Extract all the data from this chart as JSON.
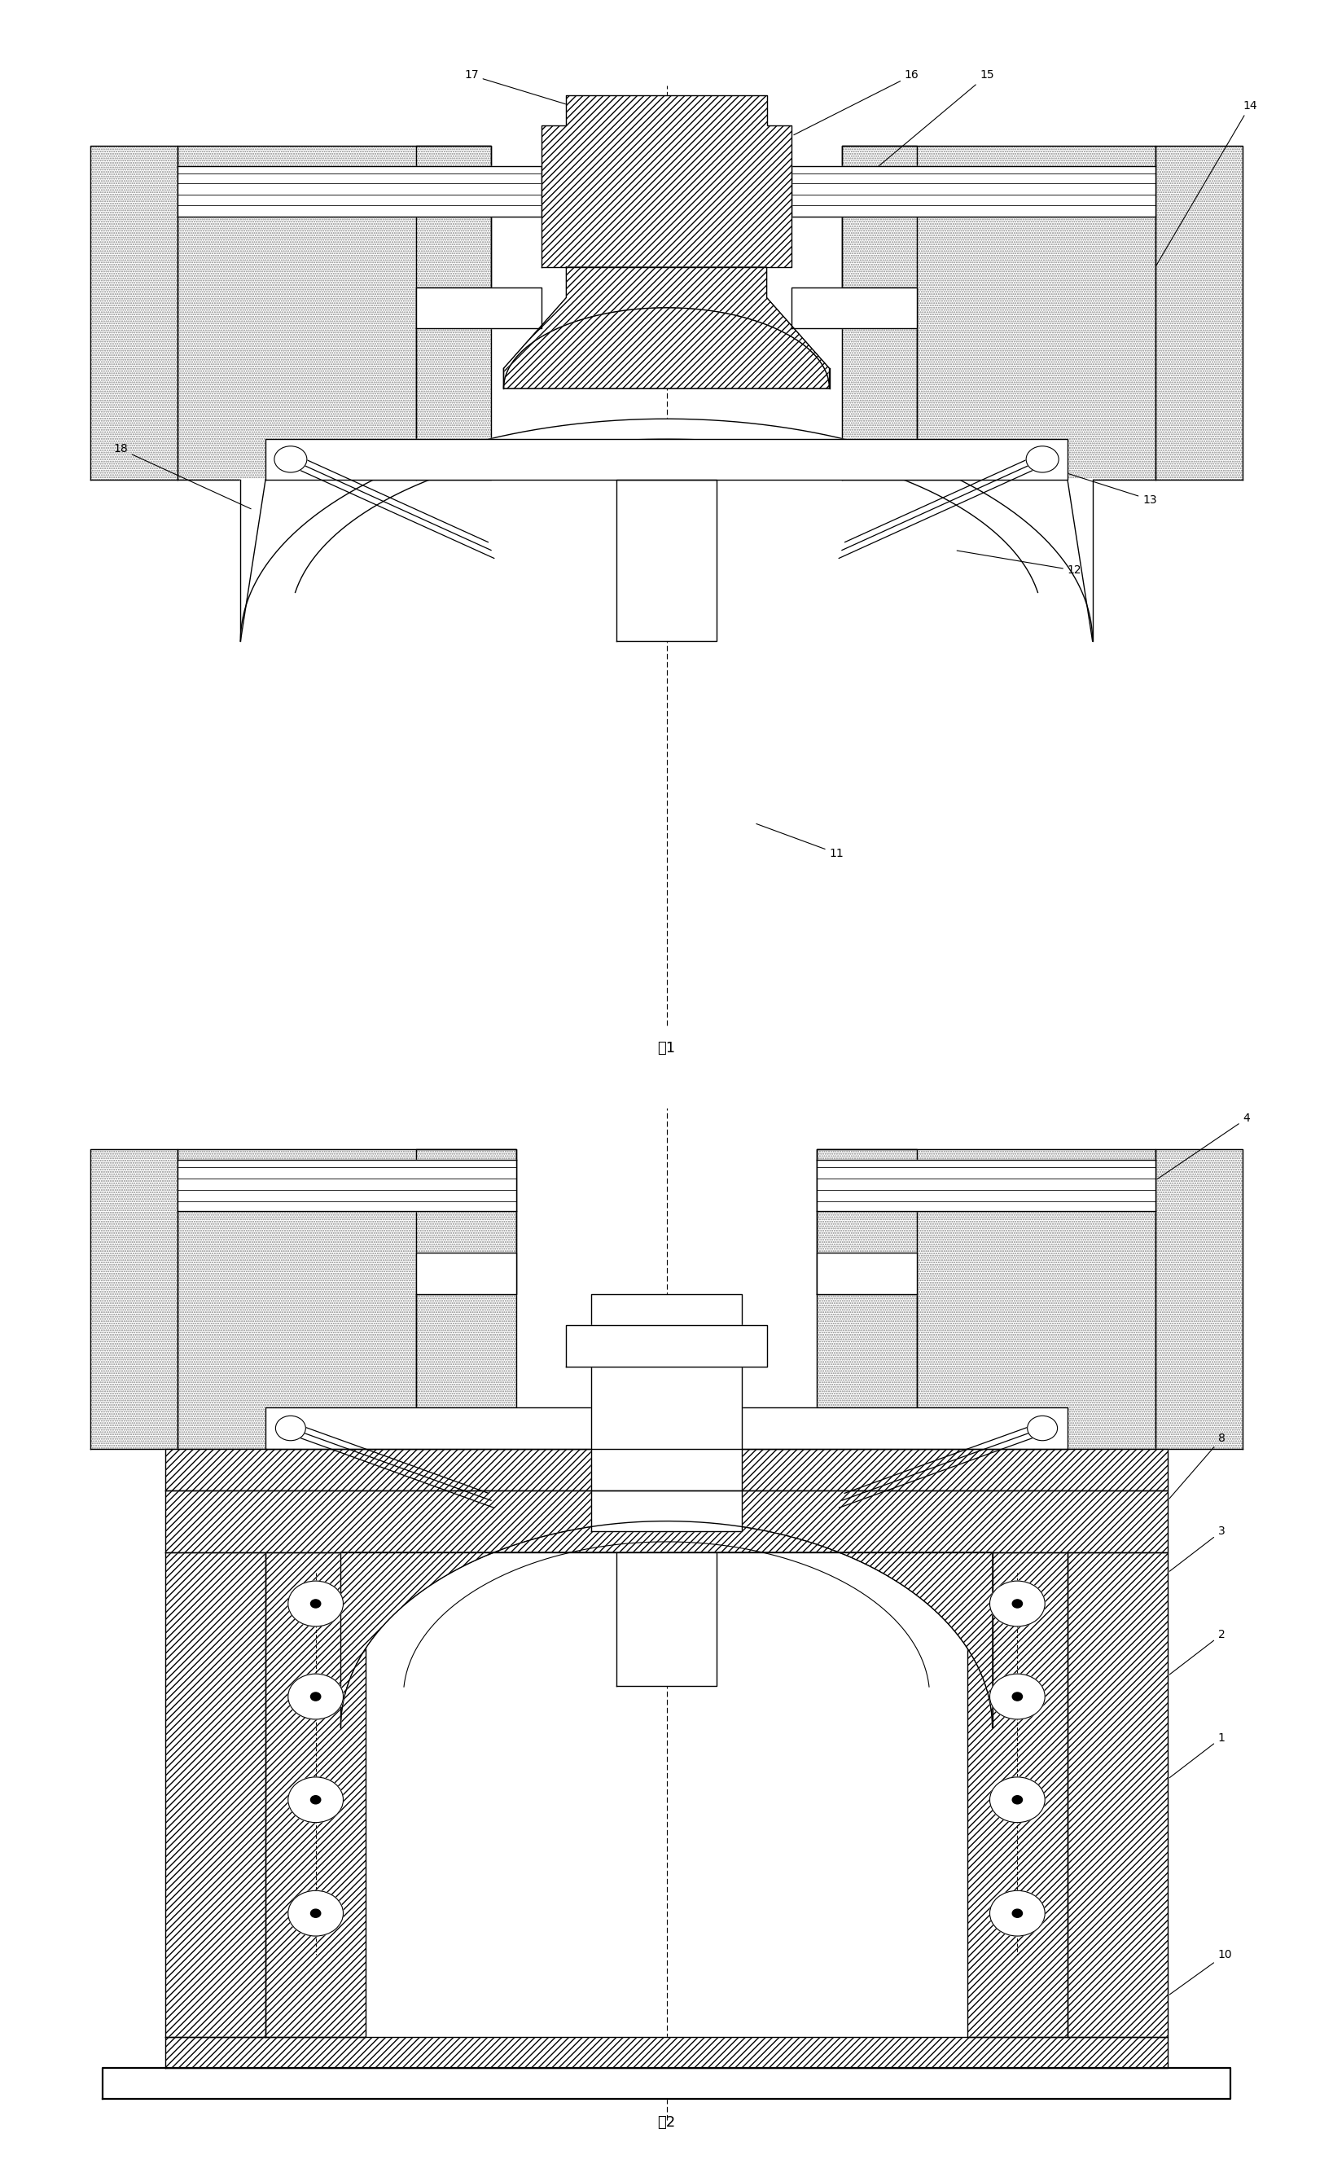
{
  "fig_width": 16.37,
  "fig_height": 26.68,
  "bg_color": "#ffffff",
  "line_color": "#000000",
  "fig1_title": "图1",
  "fig2_title": "图2",
  "stipple_color": "#aaaaaa",
  "hatch_line_color": "#000000"
}
